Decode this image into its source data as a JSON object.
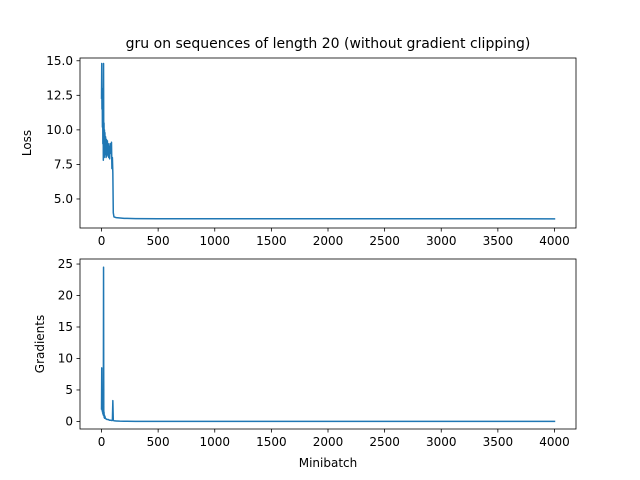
{
  "chart_data": [
    {
      "type": "line",
      "title": "gru on sequences of length 20 (without gradient clipping)",
      "xlabel": "",
      "ylabel": "Loss",
      "xlim": [
        -190,
        4190
      ],
      "ylim": [
        2.9,
        15.2
      ],
      "x_ticks": [
        0,
        500,
        1000,
        1500,
        2000,
        2500,
        3000,
        3500,
        4000
      ],
      "y_ticks": [
        5.0,
        7.5,
        10.0,
        12.5,
        15.0
      ],
      "y_tick_labels": [
        "5.0",
        "7.5",
        "10.0",
        "12.5",
        "15.0"
      ],
      "grid": false,
      "series": [
        {
          "color": "#1f77b4",
          "x": [
            0,
            2,
            4,
            6,
            8,
            10,
            12,
            14,
            16,
            18,
            20,
            22,
            24,
            26,
            28,
            30,
            33,
            36,
            40,
            44,
            48,
            52,
            56,
            60,
            64,
            68,
            72,
            76,
            80,
            84,
            88,
            92,
            96,
            100,
            104,
            110,
            130,
            200,
            300,
            500,
            1000,
            1500,
            2000,
            2500,
            3000,
            3500,
            4000
          ],
          "y": [
            12.3,
            14.8,
            11.5,
            13.0,
            10.2,
            12.6,
            9.0,
            11.8,
            7.8,
            14.8,
            8.3,
            10.5,
            8.0,
            10.0,
            8.2,
            9.8,
            8.5,
            9.5,
            8.0,
            9.3,
            8.1,
            9.2,
            8.2,
            9.0,
            8.0,
            8.8,
            7.9,
            9.0,
            8.5,
            8.3,
            9.1,
            7.2,
            8.0,
            6.9,
            4.0,
            3.7,
            3.65,
            3.6,
            3.58,
            3.57,
            3.57,
            3.57,
            3.57,
            3.57,
            3.57,
            3.57,
            3.56
          ]
        }
      ]
    },
    {
      "type": "line",
      "title": "",
      "xlabel": "Minibatch",
      "ylabel": "Gradients",
      "xlim": [
        -190,
        4190
      ],
      "ylim": [
        -1.2,
        25.8
      ],
      "x_ticks": [
        0,
        500,
        1000,
        1500,
        2000,
        2500,
        3000,
        3500,
        4000
      ],
      "y_ticks": [
        0,
        5,
        10,
        15,
        20,
        25
      ],
      "y_tick_labels": [
        "0",
        "5",
        "10",
        "15",
        "20",
        "25"
      ],
      "grid": false,
      "series": [
        {
          "color": "#1f77b4",
          "x": [
            0,
            2,
            4,
            6,
            8,
            10,
            12,
            14,
            16,
            18,
            20,
            22,
            24,
            26,
            28,
            30,
            34,
            40,
            50,
            60,
            70,
            80,
            90,
            96,
            100,
            104,
            110,
            130,
            160,
            200,
            300,
            500,
            1000,
            2000,
            3000,
            4000
          ],
          "y": [
            2.0,
            8.5,
            1.8,
            3.0,
            1.5,
            2.5,
            1.2,
            4.5,
            1.0,
            24.5,
            0.9,
            1.5,
            0.6,
            1.0,
            0.5,
            0.8,
            0.5,
            0.4,
            0.3,
            0.3,
            0.2,
            0.2,
            0.15,
            0.15,
            3.3,
            0.2,
            0.1,
            0.08,
            0.05,
            0.03,
            0.02,
            0.01,
            0.01,
            0.01,
            0.01,
            0.01
          ]
        }
      ]
    }
  ]
}
